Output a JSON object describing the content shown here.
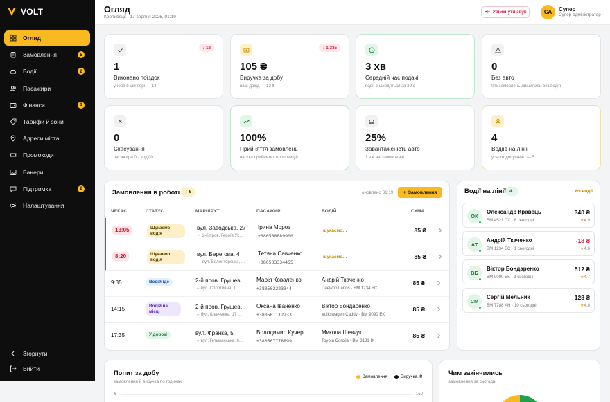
{
  "brand": {
    "name": "VOLT"
  },
  "sidebar": {
    "items": [
      {
        "label": "Огляд",
        "icon": "grid-icon",
        "active": true
      },
      {
        "label": "Замовлення",
        "icon": "clipboard-icon",
        "badge": "5"
      },
      {
        "label": "Водії",
        "icon": "car-icon",
        "badge": "2"
      },
      {
        "label": "Пасажири",
        "icon": "users-icon"
      },
      {
        "label": "Фінанси",
        "icon": "wallet-icon",
        "badge": "1"
      },
      {
        "label": "Тарифи й зони",
        "icon": "tag-icon"
      },
      {
        "label": "Адреси міста",
        "icon": "pin-icon"
      },
      {
        "label": "Промокоди",
        "icon": "ticket-icon"
      },
      {
        "label": "Банери",
        "icon": "image-icon"
      },
      {
        "label": "Підтримка",
        "icon": "chat-icon",
        "badge": "2"
      },
      {
        "label": "Налаштування",
        "icon": "gear-icon"
      }
    ],
    "collapse_label": "Згорнути",
    "logout_label": "Вийти"
  },
  "header": {
    "title": "Огляд",
    "city": "Кропивецк",
    "datetime": "17 серпня 2026, 01:19",
    "sound_button": "Увімкнути звук",
    "user_initials": "СА",
    "user_name": "Супер",
    "user_role": "Супер-адміністратор"
  },
  "stats": [
    {
      "value": "1",
      "label": "Виконано поїздок",
      "sub": "учора в цій порі — 14",
      "badge": "↓ 13",
      "icon": "check-icon"
    },
    {
      "value": "105 ₴",
      "label": "Виручка за добу",
      "sub": "ваш дохід — 12 ₴",
      "badge": "↓ 1 335",
      "icon": "cash-icon"
    },
    {
      "value": "3 хв",
      "label": "Середній час подачі",
      "sub": "водії знаходяться за 39 с",
      "icon": "clock-icon"
    },
    {
      "value": "0",
      "label": "Без авто",
      "sub": "0% замовлень лишились без водія",
      "icon": "warning-icon"
    },
    {
      "value": "0",
      "label": "Скасування",
      "sub": "пасажири 0 · водії 0",
      "icon": "x-icon"
    },
    {
      "value": "100%",
      "label": "Прийняття замовлень",
      "sub": "частка прийнятих пропозицій",
      "icon": "trend-icon"
    },
    {
      "value": "25%",
      "label": "Завантаженість авто",
      "sub": "1 з 4 на замовленні",
      "icon": "car-icon"
    },
    {
      "value": "4",
      "label": "Водіїв на лінії",
      "sub": "усього допущено — 5",
      "icon": "user-icon"
    }
  ],
  "orders": {
    "title": "Замовлення в роботі",
    "count": "5",
    "updated": "оновлено 01:19",
    "new_button": "Замовлення",
    "columns": [
      "ЧЕКАЄ",
      "СТАТУС",
      "МАРШРУТ",
      "ПАСАЖИР",
      "ВОДІЙ",
      "СУМА"
    ],
    "rows": [
      {
        "time": "13:05",
        "late": true,
        "status": "Шукаємо водія",
        "status_kind": "search",
        "from": "вул. Заводська, 27",
        "to": "→ 2-й пров. Героїв Ук…",
        "passenger": "Ірина Мороз",
        "phone": "+380508889900",
        "driver": "шукаємо…",
        "car": "",
        "sum": "85 ₴"
      },
      {
        "time": "8:20",
        "late": true,
        "status": "Шукаємо водія",
        "status_kind": "search",
        "from": "вул. Берегова, 4",
        "to": "→ вул. Волонтерська, …",
        "passenger": "Тетяна Савченко",
        "phone": "+380503334455",
        "driver": "шукаємо…",
        "car": "",
        "sum": "85 ₴"
      },
      {
        "time": "9:35",
        "late": false,
        "status": "Водій їде",
        "status_kind": "going",
        "from": "2-й пров. Грушев…",
        "to": "→ вул. Спортивна, 1 …",
        "passenger": "Марія Коваленко",
        "phone": "+380502223344",
        "driver": "Андрій Ткаченко",
        "car": "Daewoo Lanos · ВМ 1234 ВС",
        "sum": "85 ₴"
      },
      {
        "time": "14:15",
        "late": false,
        "status": "Водій на місці",
        "status_kind": "place",
        "from": "2-й пров. Грушев…",
        "to": "→ бул. Шевченка, 17 …",
        "passenger": "Оксана Іваненко",
        "phone": "+380501112233",
        "driver": "Віктор Бондаренко",
        "car": "Volkswagen Caddy · ВМ 9090 ЕК",
        "sum": "85 ₴"
      },
      {
        "time": "17:35",
        "late": false,
        "status": "У дорозі",
        "status_kind": "road",
        "from": "вул. Франка, 5",
        "to": "→ вул. Гетьманська, 6…",
        "passenger": "Володимир Кучер",
        "phone": "+380507778899",
        "driver": "Микола Шевчук",
        "car": "Toyota Corolla · ВМ 3131 ІХ",
        "sum": "85 ₴"
      }
    ]
  },
  "drivers": {
    "title": "Водії на лінії",
    "count": "4",
    "all_link": "Усі водії",
    "list": [
      {
        "initials": "ОК",
        "name": "Олександр Кравець",
        "sub": "ВМ 4521 СХ · 8 сьогодні",
        "sum": "340 ₴",
        "rating": "4.9",
        "negative": false
      },
      {
        "initials": "АТ",
        "name": "Андрій Ткаченко",
        "sub": "ВМ 1234 ВС · 1 сьогодні",
        "sum": "-18 ₴",
        "rating": "4.6",
        "negative": true
      },
      {
        "initials": "ВБ",
        "name": "Віктор Бондаренко",
        "sub": "ВМ 9090 ЕК · 3 сьогодні",
        "sum": "512 ₴",
        "rating": "4.7",
        "negative": false
      },
      {
        "initials": "СМ",
        "name": "Сергій Мельник",
        "sub": "ВМ 7788 АН · 10 сьогодні",
        "sum": "128 ₴",
        "rating": "4.8",
        "negative": false
      }
    ]
  },
  "demand": {
    "title": "Попит за добу",
    "subtitle": "замовлення й виручка по годинах",
    "legend": [
      {
        "label": "Замовлення",
        "color": "#f8b921"
      },
      {
        "label": "Виручка, ₴",
        "color": "#111111"
      }
    ],
    "axis_left_top": "6",
    "axis_right_top": "150"
  },
  "ended": {
    "title": "Чим закінчились",
    "subtitle": "замовлення за сьогодні",
    "colors": {
      "completed": "#22a04b",
      "other": "#f8b921"
    }
  },
  "colors": {
    "accent": "#f8b921",
    "danger": "#d6193d",
    "success": "#22b14c"
  }
}
